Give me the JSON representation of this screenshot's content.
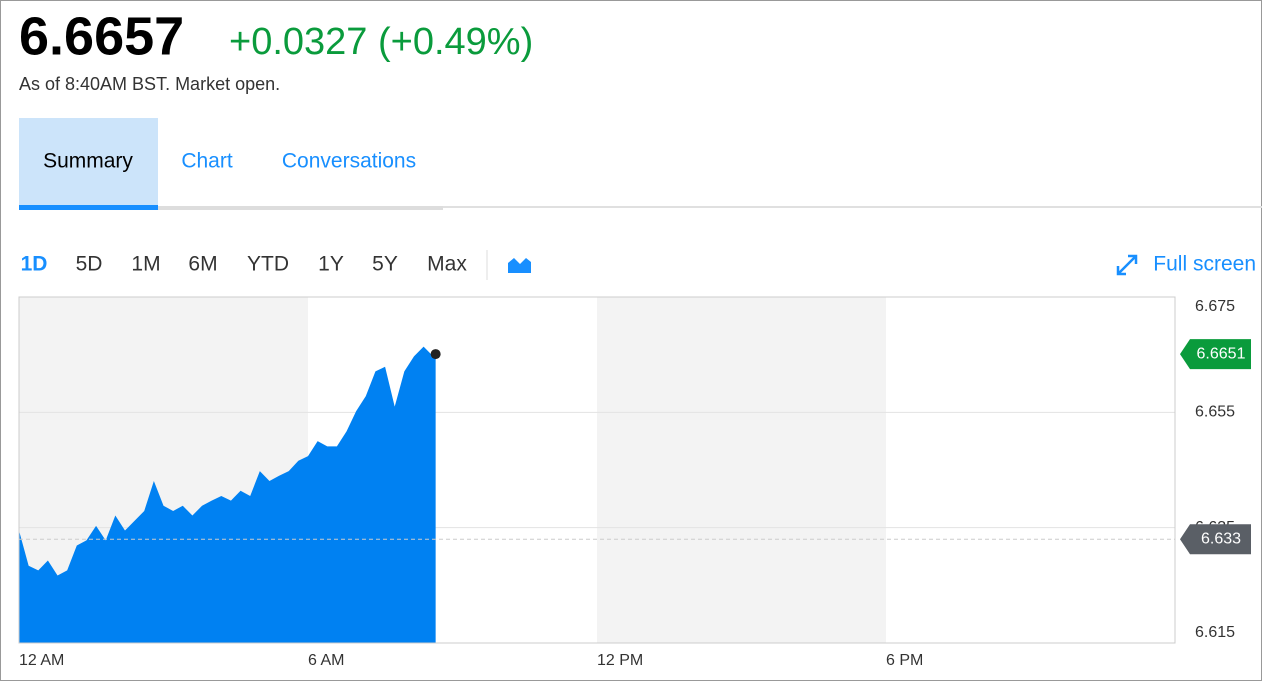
{
  "header": {
    "price": "6.6657",
    "change": "+0.0327 (+0.49%)",
    "as_of": "As of 8:40AM BST. Market open."
  },
  "tabs": [
    "Summary",
    "Chart",
    "Conversations"
  ],
  "ranges": [
    "1D",
    "5D",
    "1M",
    "6M",
    "YTD",
    "1Y",
    "5Y",
    "Max"
  ],
  "full_screen": "Full screen",
  "chart_data": {
    "type": "area",
    "color": "#0081f2",
    "x": [
      0,
      0.2,
      0.4,
      0.6,
      0.8,
      1.0,
      1.2,
      1.4,
      1.6,
      1.8,
      2.0,
      2.2,
      2.4,
      2.6,
      2.8,
      3.0,
      3.2,
      3.4,
      3.6,
      3.8,
      4.0,
      4.2,
      4.4,
      4.6,
      4.8,
      5.0,
      5.2,
      5.4,
      5.6,
      5.8,
      6.0,
      6.2,
      6.4,
      6.6,
      6.8,
      7.0,
      7.2,
      7.4,
      7.6,
      7.8,
      8.0,
      8.2,
      8.4,
      8.6,
      8.65
    ],
    "values": [
      6.6345,
      6.6284,
      6.6276,
      6.6293,
      6.6267,
      6.6276,
      6.6319,
      6.6328,
      6.6353,
      6.6328,
      6.6371,
      6.6345,
      6.6362,
      6.6379,
      6.6431,
      6.6388,
      6.6379,
      6.6388,
      6.6371,
      6.6388,
      6.6397,
      6.6405,
      6.6397,
      6.6414,
      6.6405,
      6.6448,
      6.6431,
      6.644,
      6.6448,
      6.6466,
      6.6474,
      6.65,
      6.6491,
      6.6491,
      6.6517,
      6.6552,
      6.6578,
      6.6621,
      6.6629,
      6.656,
      6.6621,
      6.6647,
      6.6664,
      6.6647,
      6.6651
    ],
    "xlim": [
      0,
      24
    ],
    "xticks": [
      {
        "value": 0,
        "label": "12 AM"
      },
      {
        "value": 6,
        "label": "6 AM"
      },
      {
        "value": 12,
        "label": "12 PM"
      },
      {
        "value": 18,
        "label": "6 PM"
      }
    ],
    "ylim": [
      6.615,
      6.675
    ],
    "yticks": [
      6.615,
      6.635,
      6.655,
      6.675
    ],
    "last_value": 6.6651,
    "previous_close": 6.633,
    "grid": true
  }
}
